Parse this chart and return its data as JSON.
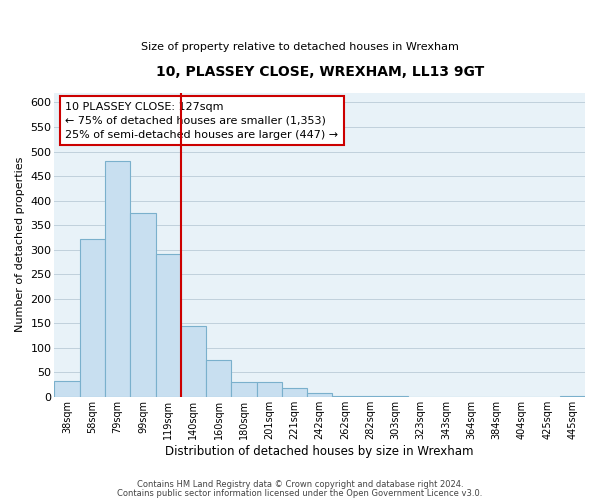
{
  "title": "10, PLASSEY CLOSE, WREXHAM, LL13 9GT",
  "subtitle": "Size of property relative to detached houses in Wrexham",
  "xlabel": "Distribution of detached houses by size in Wrexham",
  "ylabel": "Number of detached properties",
  "bar_color": "#c8dff0",
  "bar_edge_color": "#7ab0cc",
  "plot_bg_color": "#e8f2f8",
  "background_color": "#ffffff",
  "grid_color": "#c0d0dc",
  "annotation_box_edge": "#cc0000",
  "vline_color": "#cc0000",
  "categories": [
    "38sqm",
    "58sqm",
    "79sqm",
    "99sqm",
    "119sqm",
    "140sqm",
    "160sqm",
    "180sqm",
    "201sqm",
    "221sqm",
    "242sqm",
    "262sqm",
    "282sqm",
    "303sqm",
    "323sqm",
    "343sqm",
    "364sqm",
    "384sqm",
    "404sqm",
    "425sqm",
    "445sqm"
  ],
  "values": [
    32,
    322,
    481,
    374,
    292,
    145,
    75,
    31,
    30,
    17,
    7,
    2,
    1,
    1,
    0,
    0,
    0,
    0,
    0,
    0,
    2
  ],
  "ylim": [
    0,
    620
  ],
  "yticks": [
    0,
    50,
    100,
    150,
    200,
    250,
    300,
    350,
    400,
    450,
    500,
    550,
    600
  ],
  "vline_x_index": 4.5,
  "annotation_text_line1": "10 PLASSEY CLOSE: 127sqm",
  "annotation_text_line2": "← 75% of detached houses are smaller (1,353)",
  "annotation_text_line3": "25% of semi-detached houses are larger (447) →",
  "footer_line1": "Contains HM Land Registry data © Crown copyright and database right 2024.",
  "footer_line2": "Contains public sector information licensed under the Open Government Licence v3.0."
}
